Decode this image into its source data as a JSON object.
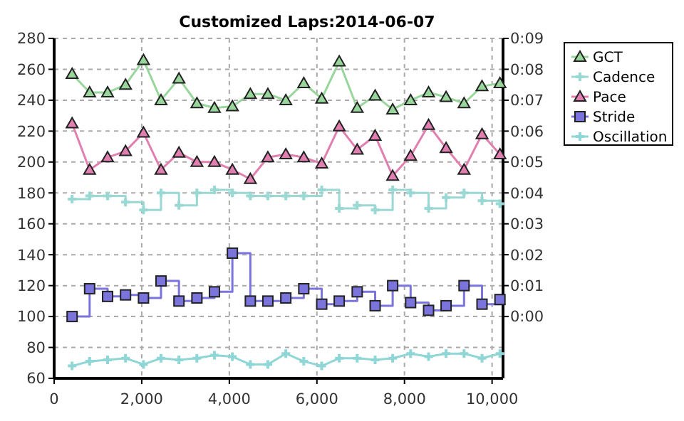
{
  "chart_data": {
    "type": "line",
    "title": "Customized Laps:2014-06-07",
    "x": [
      410,
      810,
      1220,
      1630,
      2040,
      2440,
      2850,
      3260,
      3660,
      4070,
      4480,
      4880,
      5290,
      5700,
      6110,
      6510,
      6920,
      7330,
      7730,
      8140,
      8550,
      8950,
      9360,
      9770,
      10180
    ],
    "series": [
      {
        "name": "GCT",
        "marker": "triangle",
        "color": "#99d69c",
        "values": [
          257,
          245,
          245,
          250,
          266,
          240,
          254,
          238,
          235,
          236,
          244,
          244,
          240,
          251,
          241,
          265,
          235,
          243,
          234,
          240,
          245,
          242,
          238,
          249,
          251
        ]
      },
      {
        "name": "Cadence",
        "type": "step",
        "marker": "cross",
        "color": "#9ad8d4",
        "values": [
          176,
          178,
          178,
          174,
          169,
          180,
          172,
          180,
          182,
          180,
          178,
          178,
          178,
          178,
          182,
          170,
          172,
          169,
          182,
          180,
          170,
          177,
          180,
          175,
          173
        ]
      },
      {
        "name": "Pace",
        "marker": "triangle",
        "color": "#e07fb0",
        "values": [
          225,
          195,
          203,
          207,
          219,
          195,
          206,
          200,
          200,
          195,
          189,
          203,
          205,
          203,
          199,
          223,
          208,
          217,
          191,
          204,
          224,
          209,
          195,
          218,
          205
        ]
      },
      {
        "name": "Stride",
        "type": "step",
        "marker": "square",
        "color": "#7a74dc",
        "values": [
          100,
          118,
          113,
          114,
          112,
          123,
          110,
          112,
          116,
          141,
          110,
          110,
          112,
          118,
          108,
          110,
          116,
          107,
          120,
          109,
          104,
          107,
          120,
          108,
          111
        ]
      },
      {
        "name": "Oscillation",
        "marker": "cross",
        "color": "#8fd6d6",
        "values": [
          68,
          71,
          72,
          73,
          69,
          73,
          72,
          73,
          75,
          74,
          69,
          69,
          76,
          71,
          68,
          73,
          73,
          72,
          73,
          76,
          74,
          76,
          76,
          73,
          76
        ]
      }
    ],
    "xlim": [
      0,
      10250
    ],
    "xticks": [
      0,
      {
        "value": 2000,
        "label": "2,000"
      },
      {
        "value": 4000,
        "label": "4,000"
      },
      {
        "value": 6000,
        "label": "6,000"
      },
      {
        "value": 8000,
        "label": "8,000"
      },
      {
        "value": 10000,
        "label": "10,000"
      }
    ],
    "ylim": [
      60,
      280
    ],
    "yticks": [
      60,
      80,
      100,
      120,
      140,
      160,
      180,
      200,
      220,
      240,
      260,
      280
    ],
    "y2lim": [
      -2,
      9
    ],
    "y2ticks": [
      {
        "value": 0,
        "label": "0:00"
      },
      {
        "value": 1,
        "label": "0:01"
      },
      {
        "value": 2,
        "label": "0:02"
      },
      {
        "value": 3,
        "label": "0:03"
      },
      {
        "value": 4,
        "label": "0:04"
      },
      {
        "value": 5,
        "label": "0:05"
      },
      {
        "value": 6,
        "label": "0:06"
      },
      {
        "value": 7,
        "label": "0:07"
      },
      {
        "value": 8,
        "label": "0:08"
      },
      {
        "value": 9,
        "label": "0:09"
      }
    ],
    "grid": true,
    "legend": "top right"
  }
}
